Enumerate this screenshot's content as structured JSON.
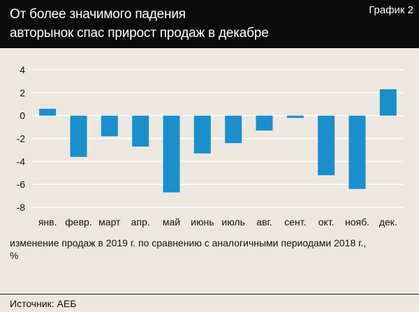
{
  "header": {
    "title_line1": "От более значимого падения",
    "title_line2": "авторынок спас прирост продаж в декабре",
    "chart_label": "График 2"
  },
  "chart_data": {
    "type": "bar",
    "title": "От более значимого падения авторынок спас прирост продаж в декабре",
    "categories": [
      "янв.",
      "февр.",
      "март",
      "апр.",
      "май",
      "июнь",
      "июль",
      "авг.",
      "сент.",
      "окт.",
      "нояб.",
      "дек."
    ],
    "values": [
      0.6,
      -3.6,
      -1.8,
      -2.7,
      -6.7,
      -3.3,
      -2.4,
      -1.3,
      -0.2,
      -5.2,
      -6.4,
      2.3
    ],
    "ylim": [
      -8,
      4
    ],
    "yticks": [
      4,
      2,
      0,
      -2,
      -4,
      -6,
      -8
    ],
    "grid": true,
    "xlabel": "",
    "ylabel": "",
    "bar_color": "#1a8fcc"
  },
  "caption": {
    "line1": "изменение продаж в 2019 г. по сравнению с аналогичными периодами 2018 г.,",
    "line2": "%"
  },
  "source": "Источник: АЕБ"
}
